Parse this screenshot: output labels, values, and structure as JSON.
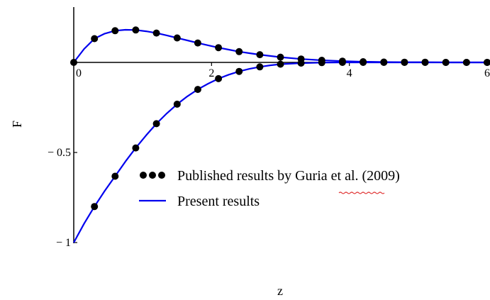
{
  "chart_data": {
    "type": "line",
    "xlabel": "z",
    "ylabel": "F",
    "xlim": [
      0,
      6
    ],
    "ylim": [
      -1,
      0.22
    ],
    "grid": false,
    "legend_position": "center",
    "x_ticks": [
      {
        "value": 0,
        "label": "0"
      },
      {
        "value": 2,
        "label": "2"
      },
      {
        "value": 4,
        "label": "4"
      },
      {
        "value": 6,
        "label": "6"
      }
    ],
    "y_ticks": [
      {
        "value": -0.5,
        "label": "− 0.5"
      },
      {
        "value": -1,
        "label": "− 1"
      }
    ],
    "series": [
      {
        "name": "Published results by Guria et al. (2009)",
        "kind": "markers",
        "color": "#000000",
        "x": [
          0,
          0.3,
          0.6,
          0.9,
          1.2,
          1.5,
          1.8,
          2.1,
          2.4,
          2.7,
          3.0,
          3.3,
          3.6,
          3.9,
          4.2,
          4.5,
          4.8,
          5.1,
          5.4,
          5.7,
          6.0
        ],
        "y": [
          0,
          0.132,
          0.176,
          0.18,
          0.163,
          0.136,
          0.108,
          0.082,
          0.06,
          0.043,
          0.029,
          0.019,
          0.012,
          0.007,
          0.004,
          0.002,
          0.001,
          0.001,
          0,
          0,
          0
        ]
      },
      {
        "name": "Published results by Guria et al. (2009) ",
        "kind": "markers",
        "color": "#000000",
        "x": [
          0.3,
          0.6,
          0.9,
          1.2,
          1.5,
          1.8,
          2.1,
          2.4,
          2.7,
          3.0,
          3.3,
          3.6,
          3.9,
          4.2,
          4.5,
          4.8,
          5.1,
          5.4,
          5.7,
          6.0
        ],
        "y": [
          -0.8,
          -0.632,
          -0.475,
          -0.34,
          -0.232,
          -0.15,
          -0.09,
          -0.05,
          -0.025,
          -0.01,
          -0.004,
          -0.001,
          0,
          0,
          0,
          0,
          0,
          0,
          0,
          0
        ]
      },
      {
        "name": "Present results",
        "kind": "line",
        "color": "#0000ee",
        "x": [
          0,
          0.15,
          0.3,
          0.45,
          0.6,
          0.75,
          0.9,
          1.05,
          1.2,
          1.35,
          1.5,
          1.65,
          1.8,
          1.95,
          2.1,
          2.25,
          2.4,
          2.55,
          2.7,
          2.85,
          3.0,
          3.3,
          3.6,
          3.9,
          4.2,
          4.5,
          4.8,
          5.1,
          5.4,
          5.7,
          6.0
        ],
        "y": [
          0,
          0.075,
          0.132,
          0.16,
          0.176,
          0.181,
          0.18,
          0.173,
          0.163,
          0.15,
          0.136,
          0.122,
          0.108,
          0.095,
          0.082,
          0.071,
          0.06,
          0.051,
          0.043,
          0.036,
          0.029,
          0.019,
          0.012,
          0.007,
          0.004,
          0.002,
          0.001,
          0.001,
          0,
          0,
          0
        ]
      },
      {
        "name": "Present results ",
        "kind": "line",
        "color": "#0000ee",
        "x": [
          0,
          0.15,
          0.3,
          0.45,
          0.6,
          0.75,
          0.9,
          1.05,
          1.2,
          1.35,
          1.5,
          1.65,
          1.8,
          1.95,
          2.1,
          2.25,
          2.4,
          2.55,
          2.7,
          2.85,
          3.0,
          3.3,
          3.6,
          3.9,
          4.2,
          4.5,
          4.8,
          5.1,
          5.4,
          5.7,
          6.0
        ],
        "y": [
          -1,
          -0.895,
          -0.8,
          -0.713,
          -0.632,
          -0.55,
          -0.475,
          -0.405,
          -0.34,
          -0.283,
          -0.232,
          -0.188,
          -0.15,
          -0.118,
          -0.09,
          -0.068,
          -0.05,
          -0.036,
          -0.025,
          -0.016,
          -0.01,
          -0.004,
          -0.001,
          0,
          0,
          0,
          0,
          0,
          0,
          0,
          0
        ]
      }
    ],
    "legend": [
      {
        "label": "Published results by Guria et al. (2009)",
        "symbol": "markers",
        "color": "#000000"
      },
      {
        "label": "Present results",
        "symbol": "line",
        "color": "#0000ee"
      }
    ]
  }
}
